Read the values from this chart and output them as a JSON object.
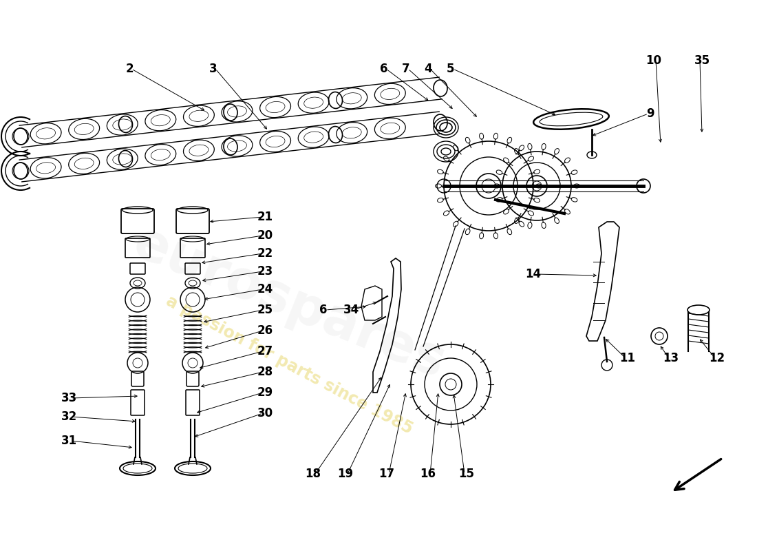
{
  "background_color": "#ffffff",
  "watermark_text": "a passion for parts since 1985",
  "watermark_color": "#e8d870",
  "watermark_alpha": 0.55,
  "line_color": "#000000",
  "font_size": 12
}
